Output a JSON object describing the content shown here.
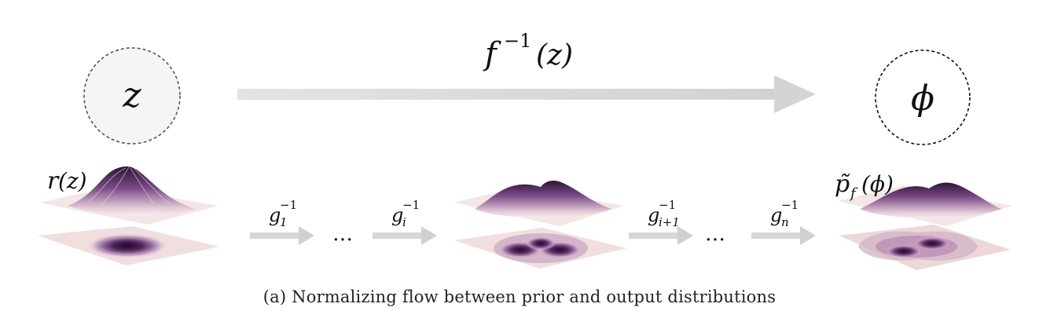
{
  "nodes": {
    "z": {
      "symbol": "z"
    },
    "phi": {
      "symbol": "ϕ"
    }
  },
  "top_map": {
    "func": "f",
    "exponent": "−1",
    "arg": "(z)"
  },
  "labels": {
    "prior": {
      "name": "r",
      "arg": "(z)"
    },
    "output": {
      "name": "p̃",
      "sub": "f",
      "arg": "(ϕ)"
    }
  },
  "steps": [
    {
      "name": "g",
      "sub": "1",
      "sup": "−1"
    },
    {
      "name": "g",
      "sub": "i",
      "sup": "−1"
    },
    {
      "name": "g",
      "sub": "i+1",
      "sup": "−1"
    },
    {
      "name": "g",
      "sub": "n",
      "sup": "−1"
    }
  ],
  "ellipsis": "…",
  "caption": "(a) Normalizing flow between prior and output distributions",
  "colors": {
    "arrow": "#dcdcdc",
    "step_arrow": "#cfcfcf",
    "plane": "#f1e0e0",
    "dark": "#2e1436",
    "mid": "#7a4a86",
    "light": "#c9a3c4",
    "node_fill": "#f5f5f5",
    "node_stroke": "#444444"
  }
}
